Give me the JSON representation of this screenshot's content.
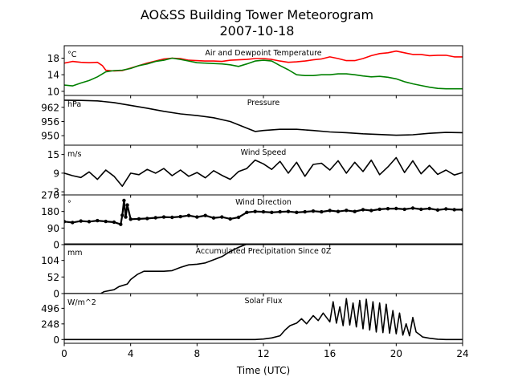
{
  "figure": {
    "title_line1": "AO&SS Building Tower Meteorogram",
    "title_line2": "2007-10-18",
    "xlabel": "Time (UTC)",
    "xlim": [
      0,
      24
    ],
    "xticks": [
      0,
      4,
      8,
      12,
      16,
      20,
      24
    ]
  },
  "chart_data": [
    {
      "type": "line",
      "title": "Air and Dewpoint Temperature",
      "unit_label": "°C",
      "ylim": [
        9,
        21
      ],
      "yticks": [
        10,
        14,
        18
      ],
      "series": [
        {
          "color": "#ff0000",
          "x": [
            0,
            0.5,
            1,
            1.5,
            2,
            2.3,
            2.5,
            3,
            3.5,
            4,
            5,
            6,
            6.5,
            7,
            7.5,
            8,
            8.5,
            9,
            9.5,
            10,
            10.5,
            11,
            11.5,
            12,
            12.5,
            13,
            13.5,
            14,
            14.5,
            15,
            15.5,
            16,
            16.5,
            17,
            17.5,
            18,
            18.5,
            19,
            19.5,
            20,
            20.5,
            21,
            21.5,
            22,
            22.5,
            23,
            23.5,
            24
          ],
          "values": [
            16.8,
            17.2,
            17.0,
            16.9,
            17.0,
            16.2,
            15.1,
            14.9,
            15.0,
            15.6,
            16.8,
            17.8,
            18.0,
            17.9,
            17.5,
            17.4,
            17.3,
            17.3,
            17.2,
            17.5,
            17.6,
            17.7,
            17.9,
            17.9,
            17.7,
            17.3,
            17.0,
            17.1,
            17.3,
            17.6,
            17.8,
            18.3,
            17.9,
            17.4,
            17.4,
            17.9,
            18.6,
            19.1,
            19.3,
            19.7,
            19.3,
            18.9,
            18.9,
            18.6,
            18.7,
            18.7,
            18.3,
            18.3
          ]
        },
        {
          "color": "#008000",
          "x": [
            0,
            0.5,
            1,
            1.5,
            2,
            2.5,
            3,
            3.5,
            4,
            4.5,
            5,
            5.5,
            6,
            6.5,
            7,
            7.5,
            8,
            8.5,
            9,
            9.5,
            10,
            10.5,
            11,
            11.5,
            12,
            12.5,
            13,
            13.5,
            14,
            14.5,
            15,
            15.5,
            16,
            16.5,
            17,
            17.5,
            18,
            18.5,
            19,
            19.5,
            20,
            20.5,
            21,
            21.5,
            22,
            22.5,
            23,
            23.5,
            24
          ],
          "values": [
            11.5,
            11.3,
            12.0,
            12.6,
            13.5,
            14.7,
            15.0,
            15.1,
            15.5,
            16.2,
            16.6,
            17.2,
            17.5,
            18.0,
            17.7,
            17.3,
            16.9,
            16.8,
            16.7,
            16.6,
            16.4,
            16.0,
            16.6,
            17.3,
            17.5,
            17.3,
            16.2,
            15.2,
            14.0,
            13.8,
            13.8,
            14.0,
            14.0,
            14.2,
            14.2,
            14.0,
            13.7,
            13.5,
            13.6,
            13.4,
            13.0,
            12.3,
            11.8,
            11.4,
            11.0,
            10.7,
            10.6,
            10.6,
            10.6
          ]
        }
      ]
    },
    {
      "type": "line",
      "title": "Pressure",
      "unit_label": "hPa",
      "ylim": [
        946,
        967
      ],
      "yticks": [
        950,
        956,
        962
      ],
      "series": [
        {
          "color": "#000000",
          "x": [
            0,
            1,
            2,
            3,
            4,
            5,
            6,
            7,
            8,
            9,
            10,
            11,
            11.5,
            12,
            13,
            14,
            15,
            16,
            17,
            18,
            19,
            20,
            21,
            22,
            23,
            24
          ],
          "values": [
            965.0,
            964.9,
            964.7,
            964.0,
            962.8,
            961.6,
            960.3,
            959.2,
            958.5,
            957.6,
            956.0,
            953.2,
            951.8,
            952.2,
            952.7,
            952.7,
            952.2,
            951.6,
            951.3,
            950.8,
            950.5,
            950.2,
            950.4,
            951.0,
            951.4,
            951.3
          ]
        }
      ]
    },
    {
      "type": "line",
      "title": "Wind Speed",
      "unit_label": "m/s",
      "ylim": [
        2,
        18
      ],
      "yticks": [
        3,
        9,
        15
      ],
      "series": [
        {
          "color": "#000000",
          "x": [
            0,
            0.5,
            1,
            1.5,
            2,
            2.5,
            3,
            3.5,
            4,
            4.5,
            5,
            5.5,
            6,
            6.5,
            7,
            7.5,
            8,
            8.5,
            9,
            9.5,
            10,
            10.5,
            11,
            11.5,
            12,
            12.5,
            13,
            13.5,
            14,
            14.5,
            15,
            15.5,
            16,
            16.5,
            17,
            17.5,
            18,
            18.5,
            19,
            19.5,
            20,
            20.5,
            21,
            21.5,
            22,
            22.5,
            23,
            23.5,
            24
          ],
          "values": [
            9.0,
            8.2,
            7.6,
            9.4,
            7.0,
            10.0,
            8.0,
            4.8,
            9.0,
            8.5,
            10.2,
            9.0,
            10.5,
            8.2,
            10.0,
            8.0,
            9.2,
            7.5,
            9.8,
            8.3,
            7.0,
            9.5,
            10.5,
            13.2,
            12.0,
            10.2,
            12.8,
            9.0,
            12.5,
            8.0,
            11.8,
            12.2,
            10.0,
            13.0,
            9.0,
            12.5,
            9.5,
            13.2,
            8.5,
            11.0,
            14.0,
            9.2,
            13.0,
            8.8,
            11.5,
            8.6,
            10.0,
            8.4,
            9.2
          ]
        }
      ]
    },
    {
      "type": "scatter",
      "title": "Wind Direction",
      "unit_label": "°",
      "ylim": [
        0,
        270
      ],
      "yticks": [
        0,
        90,
        180,
        270
      ],
      "series": [
        {
          "color": "#000000",
          "x": [
            0,
            0.5,
            1,
            1.5,
            2,
            2.5,
            3,
            3.4,
            3.5,
            3.6,
            3.7,
            3.8,
            4,
            4.5,
            5,
            5.5,
            6,
            6.5,
            7,
            7.5,
            8,
            8.5,
            9,
            9.5,
            10,
            10.5,
            11,
            11.5,
            12,
            12.5,
            13,
            13.5,
            14,
            14.5,
            15,
            15.5,
            16,
            16.5,
            17,
            17.5,
            18,
            18.5,
            19,
            19.5,
            20,
            20.5,
            21,
            21.5,
            22,
            22.5,
            23,
            23.5,
            24
          ],
          "values": [
            125,
            120,
            128,
            125,
            130,
            126,
            122,
            110,
            160,
            240,
            150,
            215,
            138,
            140,
            142,
            146,
            150,
            148,
            152,
            158,
            150,
            158,
            145,
            150,
            140,
            148,
            175,
            180,
            178,
            175,
            178,
            180,
            175,
            178,
            182,
            178,
            185,
            180,
            186,
            180,
            190,
            185,
            192,
            195,
            196,
            192,
            198,
            192,
            196,
            188,
            194,
            190,
            190
          ]
        }
      ]
    },
    {
      "type": "line",
      "title": "Accumulated Precipitation Since 0Z",
      "unit_label": "mm",
      "ylim": [
        0,
        156
      ],
      "yticks": [
        0,
        52,
        104
      ],
      "series": [
        {
          "color": "#000000",
          "x": [
            0,
            2.2,
            2.4,
            3,
            3.3,
            3.8,
            4,
            4.4,
            4.8,
            6,
            6.5,
            7,
            7.5,
            8,
            8.5,
            9,
            9.5,
            10,
            10.5,
            11,
            24
          ],
          "values": [
            0,
            0,
            6,
            12,
            22,
            30,
            44,
            60,
            70,
            70,
            72,
            82,
            90,
            92,
            96,
            106,
            116,
            132,
            145,
            155,
            155
          ]
        }
      ]
    },
    {
      "type": "line",
      "title": "Solar Flux",
      "unit_label": "W/m^2",
      "ylim": [
        -60,
        730
      ],
      "yticks": [
        0,
        248,
        496
      ],
      "series": [
        {
          "color": "#000000",
          "x": [
            0,
            11.5,
            12,
            12.5,
            13,
            13.3,
            13.6,
            14,
            14.3,
            14.6,
            15,
            15.3,
            15.6,
            16,
            16.2,
            16.4,
            16.6,
            16.8,
            17,
            17.2,
            17.4,
            17.6,
            17.8,
            18,
            18.2,
            18.4,
            18.6,
            18.8,
            19,
            19.2,
            19.4,
            19.6,
            19.8,
            20,
            20.2,
            20.4,
            20.6,
            20.8,
            21,
            21.2,
            21.4,
            21.6,
            22,
            22.5,
            23,
            24
          ],
          "values": [
            0,
            0,
            8,
            25,
            60,
            150,
            220,
            260,
            330,
            250,
            380,
            300,
            420,
            280,
            600,
            260,
            520,
            220,
            650,
            230,
            580,
            200,
            620,
            170,
            640,
            150,
            600,
            120,
            580,
            110,
            560,
            100,
            460,
            90,
            420,
            70,
            250,
            60,
            350,
            120,
            80,
            40,
            20,
            5,
            0,
            0
          ]
        }
      ]
    }
  ]
}
